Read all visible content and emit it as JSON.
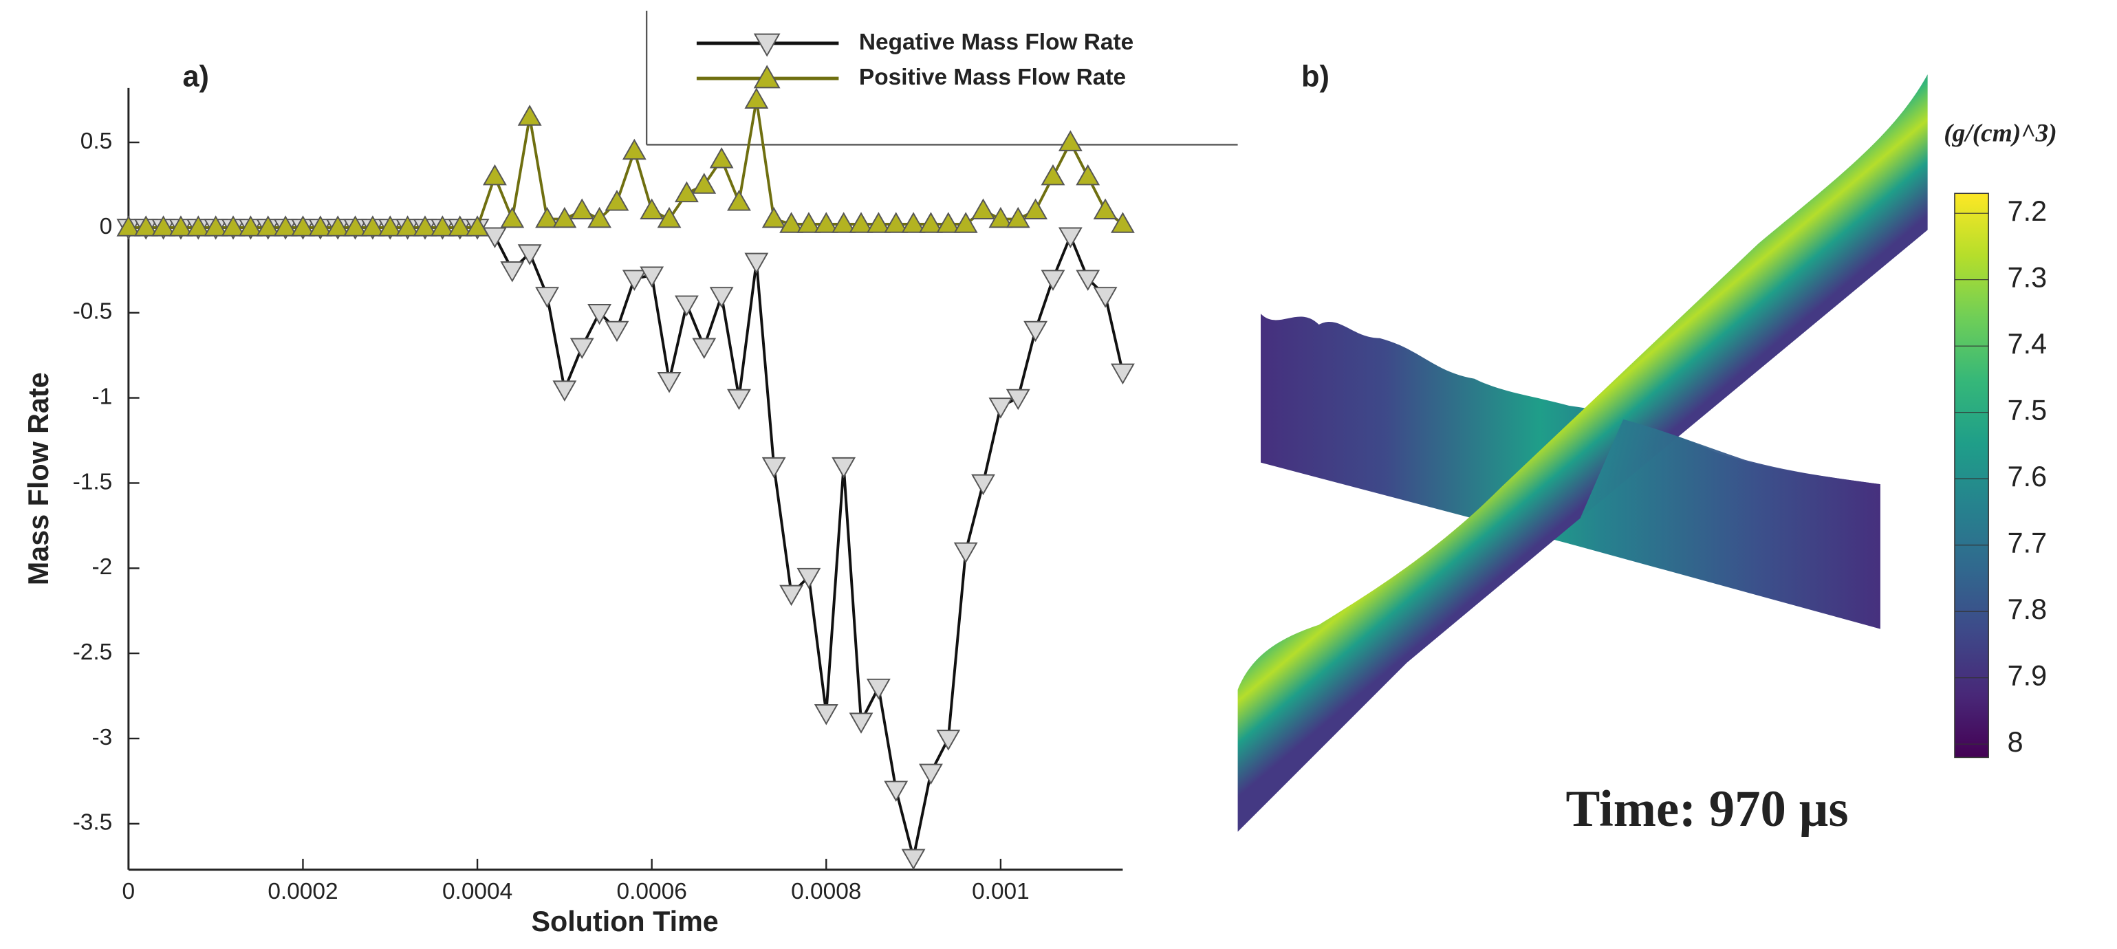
{
  "chart_data": [
    {
      "type": "line",
      "panel_label": "a)",
      "x_label": "Solution Time",
      "y_label": "Mass Flow Rate",
      "x": [
        0,
        2e-05,
        4e-05,
        6e-05,
        8e-05,
        0.0001,
        0.00012,
        0.00014,
        0.00016,
        0.00018,
        0.0002,
        0.00022,
        0.00024,
        0.00026,
        0.00028,
        0.0003,
        0.00032,
        0.00034,
        0.00036,
        0.00038,
        0.0004,
        0.00042,
        0.00044,
        0.00046,
        0.00048,
        0.0005,
        0.00052,
        0.00054,
        0.00056,
        0.00058,
        0.0006,
        0.00062,
        0.00064,
        0.00066,
        0.00068,
        0.0007,
        0.00072,
        0.00074,
        0.00076,
        0.00078,
        0.0008,
        0.00082,
        0.00084,
        0.00086,
        0.00088,
        0.0009,
        0.00092,
        0.00094,
        0.00096,
        0.00098,
        0.001,
        0.00102,
        0.00104,
        0.00106,
        0.00108,
        0.0011,
        0.00112,
        0.00114
      ],
      "series": [
        {
          "name": "Negative Mass Flow Rate",
          "color": "#111111",
          "marker_color": "#d9d9d9",
          "marker": "triangle-down",
          "values": [
            0,
            0,
            0,
            0,
            0,
            0,
            0,
            0,
            0,
            0,
            0,
            0,
            0,
            0,
            0,
            0,
            0,
            0,
            0,
            0,
            0,
            -0.05,
            -0.25,
            -0.15,
            -0.4,
            -0.95,
            -0.7,
            -0.5,
            -0.6,
            -0.3,
            -0.28,
            -0.9,
            -0.45,
            -0.7,
            -0.4,
            -1.0,
            -0.2,
            -1.4,
            -2.15,
            -2.05,
            -2.85,
            -1.4,
            -2.9,
            -2.7,
            -3.3,
            -3.7,
            -3.2,
            -3.0,
            -1.9,
            -1.5,
            -1.05,
            -1.0,
            -0.6,
            -0.3,
            -0.05,
            -0.3,
            -0.4,
            -0.85
          ]
        },
        {
          "name": "Positive Mass Flow Rate",
          "color": "#6f6f10",
          "marker_color": "#b3b321",
          "marker": "triangle-up",
          "values": [
            0,
            0,
            0,
            0,
            0,
            0,
            0,
            0,
            0,
            0,
            0,
            0,
            0,
            0,
            0,
            0,
            0,
            0,
            0,
            0,
            0,
            0.3,
            0.05,
            0.65,
            0.05,
            0.05,
            0.1,
            0.05,
            0.15,
            0.45,
            0.1,
            0.05,
            0.2,
            0.25,
            0.4,
            0.15,
            0.75,
            0.05,
            0.02,
            0.02,
            0.02,
            0.02,
            0.02,
            0.02,
            0.02,
            0.02,
            0.02,
            0.02,
            0.02,
            0.1,
            0.05,
            0.05,
            0.1,
            0.3,
            0.5,
            0.3,
            0.1,
            0.02
          ]
        }
      ],
      "xlim": [
        0,
        0.00114
      ],
      "xticks": [
        0,
        0.0002,
        0.0004,
        0.0006,
        0.0008,
        0.001
      ],
      "ylim": [
        -3.77,
        0.82
      ],
      "yticks": [
        0.5,
        0,
        -0.5,
        -1,
        -1.5,
        -2,
        -2.5,
        -3,
        -3.5
      ],
      "legend": "top"
    },
    {
      "type": "colorbar",
      "panel_label": "b)",
      "title": "(g/(cm)^3)",
      "annotation": "Time: 970 µs",
      "ylim": [
        7.17,
        8.02
      ],
      "yticks": [
        7.2,
        7.3,
        7.4,
        7.5,
        7.6,
        7.7,
        7.8,
        7.9,
        8
      ],
      "colors": [
        "#fde725",
        "#b5de2b",
        "#6ece58",
        "#35b779",
        "#1f9e89",
        "#26828e",
        "#31688e",
        "#3e4989",
        "#482878",
        "#440154"
      ]
    }
  ]
}
